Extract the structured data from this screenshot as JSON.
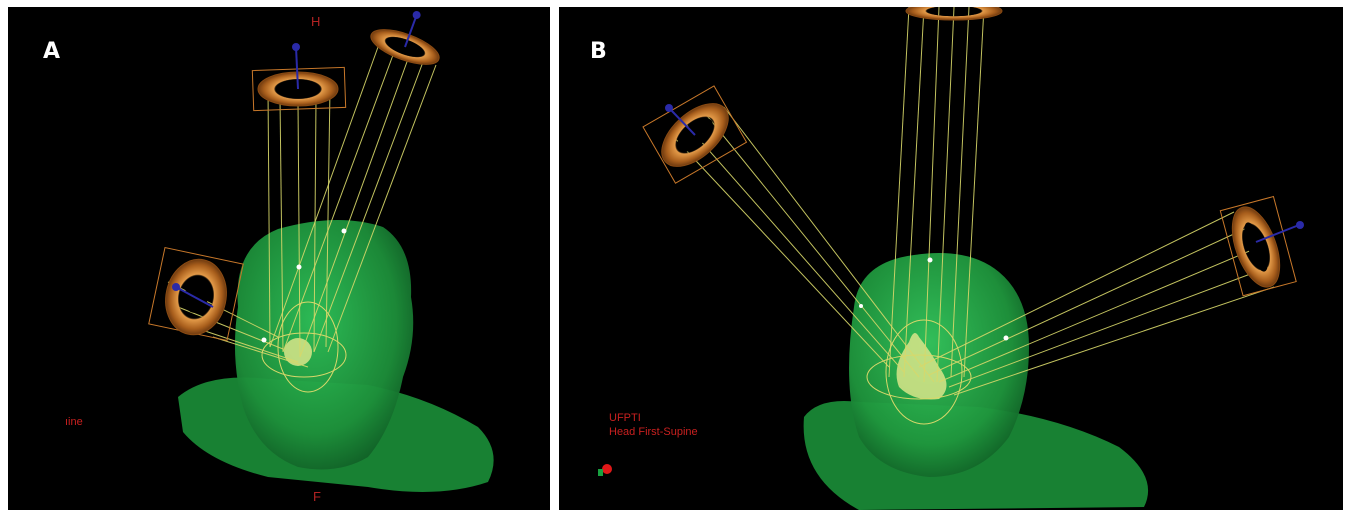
{
  "panels": {
    "a": {
      "letter": "A",
      "orientation_top": "H",
      "orientation_bottom": "F",
      "side_text": "ıine"
    },
    "b": {
      "letter": "B",
      "info_line1": "UFPTI",
      "info_line2": "Head First-Supine"
    }
  },
  "colors": {
    "background": "#000000",
    "head": "#1f9b3c",
    "beam_lines": "#d8d86a",
    "ring": "#c8782a",
    "axis": "#2a2aa8",
    "annotation_text": "#c8201f"
  },
  "icons": {
    "orientation_marker": "red-green-ball-icon"
  }
}
